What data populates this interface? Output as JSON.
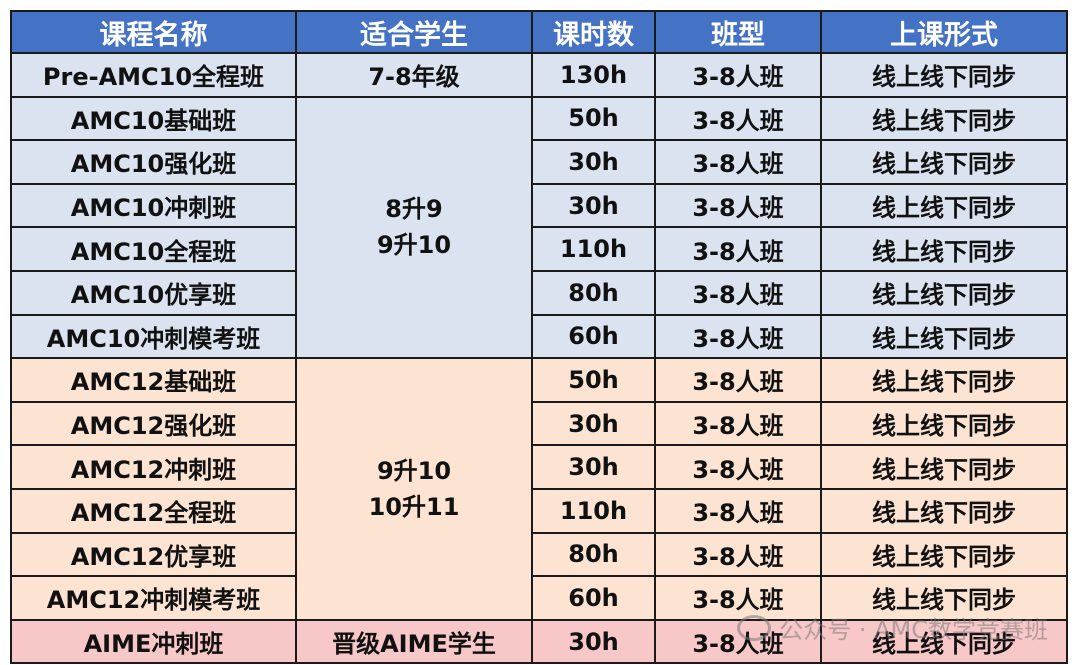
{
  "table": {
    "headers": [
      "课程名称",
      "适合学生",
      "课时数",
      "班型",
      "上课形式"
    ],
    "rows": [
      {
        "name": "Pre-AMC10全程班",
        "grade": "7-8年级",
        "hours": "130h",
        "size": "3-8人班",
        "format": "线上线下同步"
      },
      {
        "name": "AMC10基础班",
        "grade_lines": [
          "8升9",
          "9升10"
        ],
        "hours": "50h",
        "size": "3-8人班",
        "format": "线上线下同步"
      },
      {
        "name": "AMC10强化班",
        "hours": "30h",
        "size": "3-8人班",
        "format": "线上线下同步"
      },
      {
        "name": "AMC10冲刺班",
        "hours": "30h",
        "size": "3-8人班",
        "format": "线上线下同步"
      },
      {
        "name": "AMC10全程班",
        "hours": "110h",
        "size": "3-8人班",
        "format": "线上线下同步"
      },
      {
        "name": "AMC10优享班",
        "hours": "80h",
        "size": "3-8人班",
        "format": "线上线下同步"
      },
      {
        "name": "AMC10冲刺模考班",
        "hours": "60h",
        "size": "3-8人班",
        "format": "线上线下同步"
      },
      {
        "name": "AMC12基础班",
        "grade_lines": [
          "9升10",
          "10升11"
        ],
        "hours": "50h",
        "size": "3-8人班",
        "format": "线上线下同步"
      },
      {
        "name": "AMC12强化班",
        "hours": "30h",
        "size": "3-8人班",
        "format": "线上线下同步"
      },
      {
        "name": "AMC12冲刺班",
        "hours": "30h",
        "size": "3-8人班",
        "format": "线上线下同步"
      },
      {
        "name": "AMC12全程班",
        "hours": "110h",
        "size": "3-8人班",
        "format": "线上线下同步"
      },
      {
        "name": "AMC12优享班",
        "hours": "80h",
        "size": "3-8人班",
        "format": "线上线下同步"
      },
      {
        "name": "AMC12冲刺模考班",
        "hours": "60h",
        "size": "3-8人班",
        "format": "线上线下同步"
      },
      {
        "name": "AIME冲刺班",
        "grade": "晋级AIME学生",
        "hours": "30h",
        "size": "3-8人班",
        "format": "线上线下同步"
      }
    ]
  },
  "watermark": {
    "text": "公众号 · AMC数学竞赛班"
  },
  "colors": {
    "header": "#4472c4",
    "amc10_rows": "#dbe3f1",
    "amc12_rows": "#fce3d2",
    "aime_row": "#f8c7c7"
  }
}
